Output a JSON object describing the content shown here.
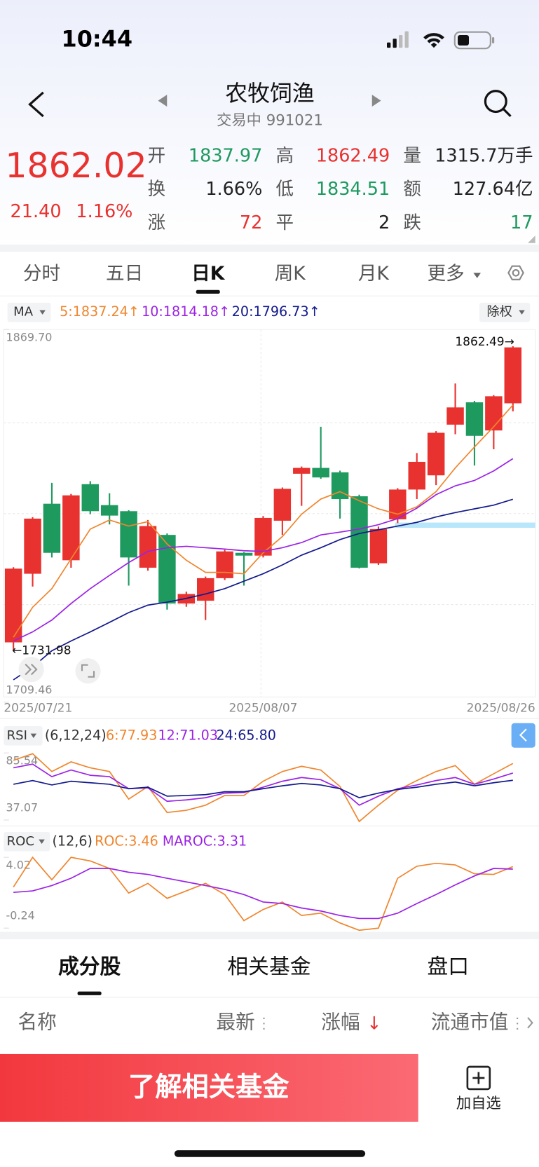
{
  "status_bar": {
    "time": "10:44"
  },
  "header": {
    "title": "农牧饲渔",
    "subtitle": "交易中 991021"
  },
  "quote": {
    "price": "1862.02",
    "change": "21.40",
    "change_pct": "1.16%",
    "color": "#e8322f",
    "fields": [
      {
        "label": "开",
        "value": "1837.97",
        "color": "#1f9a5f"
      },
      {
        "label": "高",
        "value": "1862.49",
        "color": "#e8322f"
      },
      {
        "label": "量",
        "value": "1315.7万手",
        "color": "#222222"
      },
      {
        "label": "换",
        "value": "1.66%",
        "color": "#222222"
      },
      {
        "label": "低",
        "value": "1834.51",
        "color": "#1f9a5f"
      },
      {
        "label": "额",
        "value": "127.64亿",
        "color": "#222222"
      },
      {
        "label": "涨",
        "value": "72",
        "color": "#e8322f"
      },
      {
        "label": "平",
        "value": "2",
        "color": "#222222"
      },
      {
        "label": "跌",
        "value": "17",
        "color": "#1f9a5f"
      }
    ]
  },
  "period_tabs": {
    "items": [
      "分时",
      "五日",
      "日K",
      "周K",
      "月K",
      "更多"
    ],
    "selected": 2
  },
  "chart_data": [
    {
      "type": "candlestick",
      "indicator": "MA",
      "adjust": "除权",
      "categories": [
        "2025/07/21",
        null,
        null,
        null,
        null,
        null,
        null,
        null,
        null,
        null,
        null,
        null,
        null,
        "2025/08/07",
        null,
        null,
        null,
        null,
        null,
        null,
        null,
        null,
        null,
        null,
        null,
        null,
        "2025/08/26"
      ],
      "open": [
        1735.2,
        1764.7,
        1794.8,
        1770.5,
        1803.2,
        1794.2,
        1791.6,
        1767.3,
        1781.4,
        1751.9,
        1753.1,
        1762.8,
        1773.7,
        1772.5,
        1787.5,
        1807.7,
        1810.2,
        1808.3,
        1798.0,
        1769.2,
        1788.1,
        1800.9,
        1807.0,
        1828.8,
        1838.4,
        1826.3,
        1837.97
      ],
      "high": [
        1767.5,
        1789.0,
        1803.8,
        1799.0,
        1804.5,
        1799.3,
        1792.0,
        1787.8,
        1782.0,
        1757.0,
        1763.5,
        1775.0,
        1774.0,
        1789.5,
        1801.8,
        1810.8,
        1827.9,
        1809.0,
        1798.7,
        1785.0,
        1801.5,
        1816.6,
        1826.0,
        1846.5,
        1839.0,
        1841.5,
        1862.49
      ],
      "low": [
        1731.98,
        1759.2,
        1771.7,
        1767.3,
        1790.3,
        1785.9,
        1759.6,
        1766.0,
        1749.3,
        1750.5,
        1744.8,
        1762.0,
        1759.6,
        1771.7,
        1781.4,
        1793.9,
        1805.5,
        1788.4,
        1767.0,
        1768.5,
        1786.5,
        1796.8,
        1802.8,
        1824.7,
        1811.2,
        1818.2,
        1834.51
      ],
      "close": [
        1766.9,
        1788.4,
        1773.7,
        1798.4,
        1791.6,
        1789.7,
        1771.7,
        1785.2,
        1751.9,
        1756.0,
        1762.8,
        1774.3,
        1772.5,
        1788.7,
        1801.2,
        1810.2,
        1806.1,
        1796.8,
        1767.3,
        1783.9,
        1800.9,
        1812.8,
        1825.3,
        1836.2,
        1824.0,
        1841.0,
        1862.02
      ],
      "up_color": "#e8322f",
      "down_color": "#1f9a5f",
      "series": [
        {
          "name": "5:1837.24↑",
          "color": "#f0852d",
          "values": [
            1737.4,
            1750.3,
            1758.3,
            1771.1,
            1783.9,
            1787.8,
            1785.2,
            1787.1,
            1777.5,
            1770.5,
            1765.3,
            1765.3,
            1764.7,
            1773.7,
            1780.7,
            1790.3,
            1796.8,
            1800.0,
            1796.1,
            1792.6,
            1790.3,
            1793.5,
            1800.0,
            1810.2,
            1819.2,
            1827.9,
            1837.24
          ]
        },
        {
          "name": "10:1814.18↑",
          "color": "#9b22e6",
          "values": [
            1735.8,
            1739.7,
            1744.8,
            1751.9,
            1758.3,
            1764.0,
            1769.5,
            1774.3,
            1775.9,
            1776.5,
            1775.9,
            1775.3,
            1774.6,
            1774.3,
            1775.9,
            1778.1,
            1781.4,
            1782.6,
            1783.9,
            1785.8,
            1788.4,
            1792.9,
            1798.7,
            1802.5,
            1804.8,
            1808.9,
            1814.18
          ]
        },
        {
          "name": "20:1796.73↑",
          "color": "#131a8c",
          "values": [
            1719.1,
            1724.6,
            1731.6,
            1735.8,
            1739.7,
            1743.8,
            1748.0,
            1751.2,
            1752.5,
            1754.1,
            1756.0,
            1758.3,
            1761.5,
            1764.7,
            1768.5,
            1772.7,
            1775.9,
            1779.4,
            1782.0,
            1783.6,
            1785.2,
            1786.8,
            1789.1,
            1791.0,
            1792.6,
            1794.2,
            1796.73
          ]
        }
      ],
      "ylim": [
        1709.46,
        1869.7
      ],
      "yticks": [
        {
          "value": 1869.7,
          "label": "1869.70"
        },
        1709.46
      ],
      "annotations": [
        "1862.49→",
        "←1731.98"
      ]
    },
    {
      "type": "line",
      "indicator": "RSI",
      "params": "(6,12,24)",
      "series": [
        {
          "name": "6:77.93",
          "color": "#f0852d",
          "values": [
            80.2,
            85.0,
            72.1,
            79.1,
            74.8,
            72.1,
            52.2,
            61.3,
            42.5,
            44.1,
            47.8,
            54.8,
            54.8,
            65.1,
            72.1,
            75.9,
            73.2,
            61.3,
            36.0,
            47.8,
            58.6,
            65.6,
            72.1,
            76.4,
            62.9,
            70.5,
            77.93
          ]
        },
        {
          "name": "12:71.03",
          "color": "#9b22e6",
          "values": [
            74.8,
            77.5,
            68.4,
            73.2,
            69.4,
            68.4,
            59.7,
            60.3,
            50.6,
            51.6,
            53.2,
            56.5,
            57.0,
            60.8,
            65.1,
            67.8,
            66.2,
            59.7,
            47.8,
            54.3,
            59.7,
            62.4,
            65.6,
            67.8,
            62.9,
            66.7,
            71.03
          ]
        },
        {
          "name": "24:65.80",
          "color": "#131a8c",
          "values": [
            62.9,
            65.6,
            62.4,
            65.1,
            64.0,
            62.9,
            59.7,
            60.8,
            54.3,
            54.8,
            55.4,
            57.5,
            57.5,
            59.7,
            61.8,
            63.5,
            62.4,
            59.7,
            53.2,
            56.5,
            59.2,
            60.8,
            62.9,
            64.5,
            61.8,
            64.0,
            65.8
          ]
        }
      ],
      "ylim": [
        37.07,
        85.54
      ],
      "yticks": [
        85.54,
        37.07
      ]
    },
    {
      "type": "line",
      "indicator": "ROC",
      "params": "(12,6)",
      "series": [
        {
          "name": "ROC:3.46",
          "color": "#f0852d",
          "values": [
            2.23,
            4.02,
            2.67,
            4.02,
            3.8,
            3.35,
            1.87,
            2.45,
            1.55,
            2.0,
            2.45,
            1.78,
            0.21,
            0.88,
            1.33,
            0.52,
            0.66,
            0.07,
            -0.37,
            -0.24,
            2.76,
            3.48,
            3.66,
            3.56,
            3.03,
            2.99,
            3.46
          ]
        },
        {
          "name": "MAROC:3.31",
          "color": "#9b22e6",
          "values": [
            1.91,
            2.0,
            2.32,
            2.76,
            3.35,
            3.35,
            3.12,
            2.99,
            2.76,
            2.54,
            2.32,
            2.09,
            1.78,
            1.33,
            1.24,
            0.97,
            0.79,
            0.52,
            0.34,
            0.34,
            0.66,
            1.24,
            1.78,
            2.36,
            2.9,
            3.35,
            3.31
          ]
        }
      ],
      "ylim": [
        -0.24,
        4.02
      ],
      "yticks": [
        4.02,
        -0.24
      ]
    }
  ],
  "bottom_tabs": {
    "items": [
      "成分股",
      "相关基金",
      "盘口"
    ],
    "selected": 0
  },
  "table_header": [
    "名称",
    "最新",
    "涨幅",
    "流通市值"
  ],
  "sort_arrow": "↓",
  "actions": {
    "primary": "了解相关基金",
    "watchlist": "加自选"
  }
}
